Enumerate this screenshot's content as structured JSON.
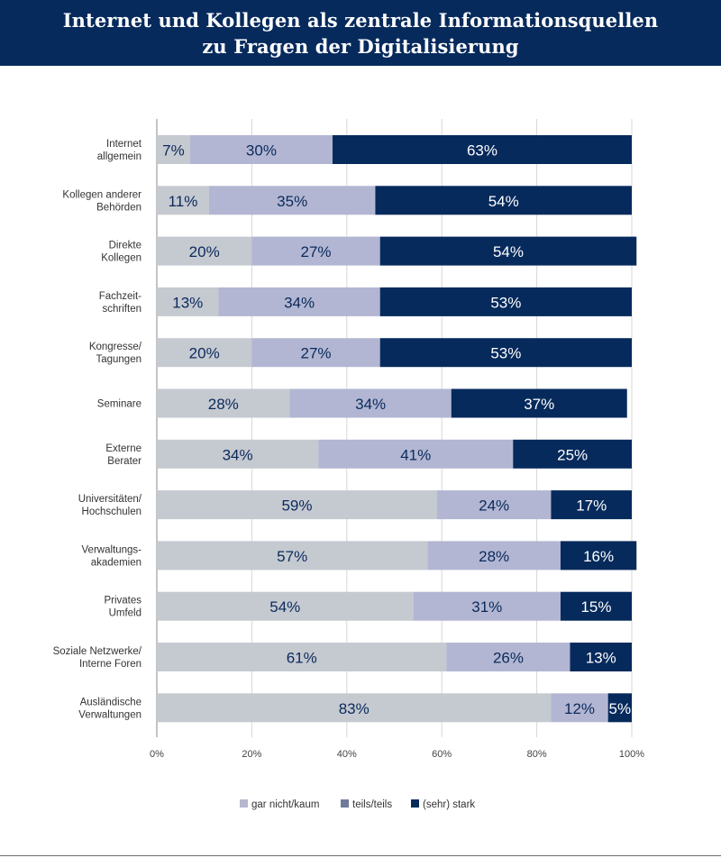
{
  "header": {
    "title_line1": "Internet und Kollegen als zentrale Informationsquellen",
    "title_line2": "zu Fragen der Digitalisierung"
  },
  "chart_data": {
    "type": "bar",
    "orientation": "horizontal",
    "stacked": true,
    "title": "Internet und Kollegen als zentrale Informationsquellen zu Fragen der Digitalisierung",
    "categories": [
      [
        "Internet",
        "allgemein"
      ],
      [
        "Kollegen anderer",
        "Behörden"
      ],
      [
        "Direkte",
        "Kollegen"
      ],
      [
        "Fachzeit-",
        "schriften"
      ],
      [
        "Kongresse/",
        "Tagungen"
      ],
      [
        "Seminare"
      ],
      [
        "Externe",
        "Berater"
      ],
      [
        "Universitäten/",
        "Hochschulen"
      ],
      [
        "Verwaltungs-",
        "akademien"
      ],
      [
        "Privates",
        "Umfeld"
      ],
      [
        "Soziale Netzwerke/",
        "Interne Foren"
      ],
      [
        "Ausländische",
        "Verwaltungen"
      ]
    ],
    "series": [
      {
        "name": "gar nicht/kaum",
        "color": "#c5c9d0",
        "legend_color": "#b4b7cd",
        "values": [
          7,
          11,
          20,
          13,
          20,
          28,
          34,
          59,
          57,
          54,
          61,
          83
        ]
      },
      {
        "name": "teils/teils",
        "color": "#b2b6d2",
        "legend_color": "#717a9d",
        "values": [
          30,
          35,
          27,
          34,
          27,
          34,
          41,
          24,
          28,
          31,
          26,
          12
        ]
      },
      {
        "name": "(sehr) stark",
        "color": "#062a5c",
        "legend_color": "#062a5c",
        "values": [
          63,
          54,
          54,
          53,
          53,
          37,
          25,
          17,
          16,
          15,
          13,
          5
        ]
      }
    ],
    "xlim": [
      0,
      100
    ],
    "xticks": [
      0,
      20,
      40,
      60,
      80,
      100
    ],
    "xtick_labels": [
      "0%",
      "20%",
      "40%",
      "60%",
      "80%",
      "100%"
    ],
    "value_suffix": "%",
    "grid": true,
    "legend_position": "bottom-center"
  }
}
